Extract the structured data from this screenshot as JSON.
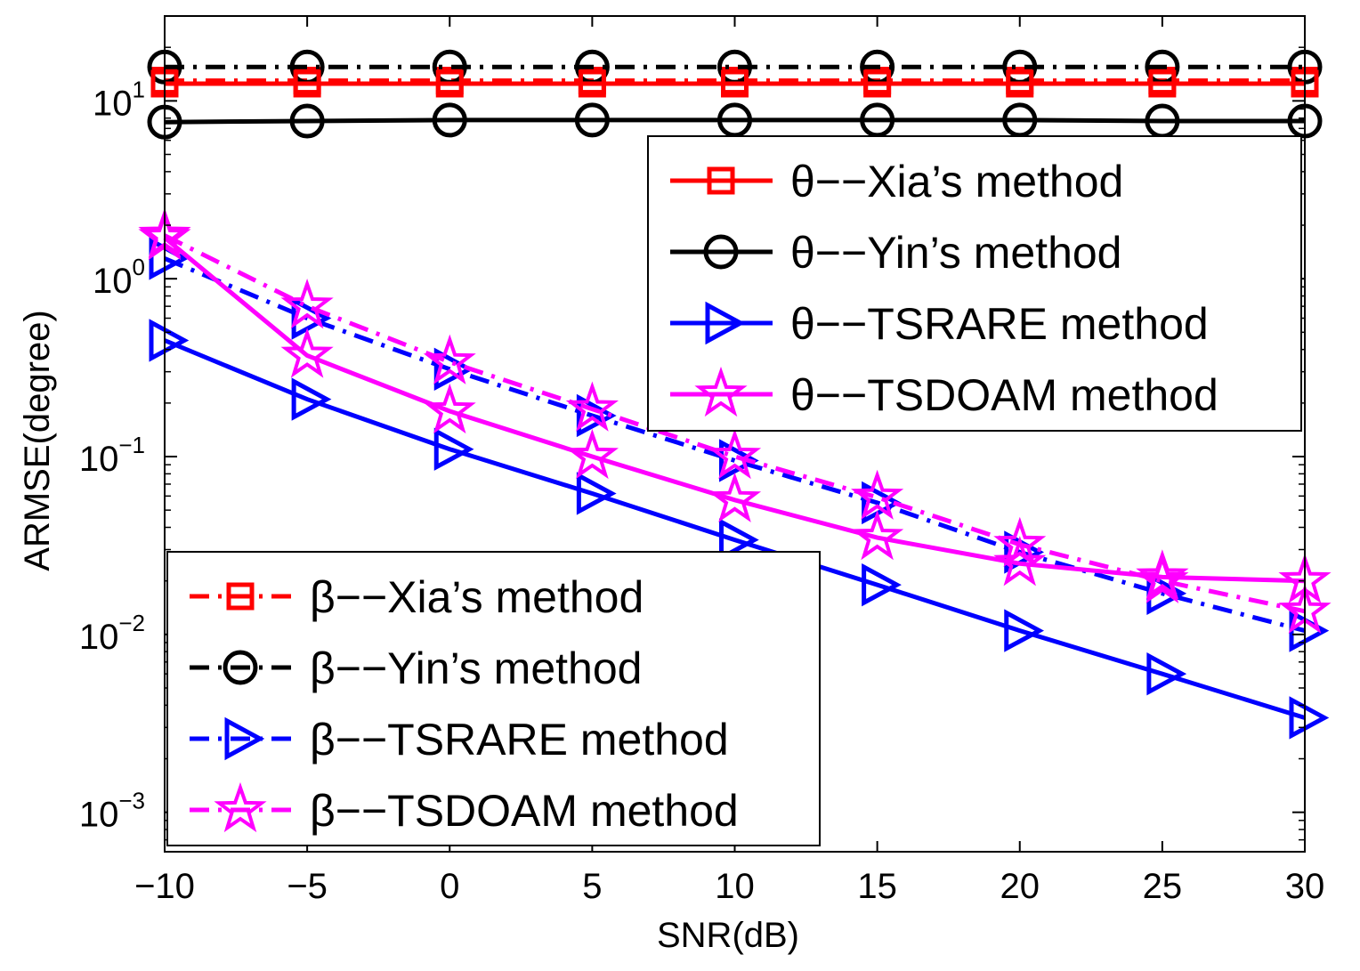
{
  "chart_data": {
    "type": "line",
    "title": "",
    "xlabel": "SNR(dB)",
    "ylabel": "ARMSE(degree)",
    "xlim": [
      -10,
      30
    ],
    "ylim": [
      0.0006,
      30
    ],
    "yscale": "log",
    "x": [
      -10,
      -5,
      0,
      5,
      10,
      15,
      20,
      25,
      30
    ],
    "x_tick_labels": [
      "−10",
      "−5",
      "0",
      "5",
      "10",
      "15",
      "20",
      "25",
      "30"
    ],
    "y_ticks": [
      {
        "value": 10,
        "base": "10",
        "exp": "1"
      },
      {
        "value": 1,
        "base": "10",
        "exp": "0"
      },
      {
        "value": 0.1,
        "base": "10",
        "exp": "−1"
      },
      {
        "value": 0.01,
        "base": "10",
        "exp": "−2"
      },
      {
        "value": 0.001,
        "base": "10",
        "exp": "−3"
      }
    ],
    "series": [
      {
        "name": "θ−−Xia’s method",
        "color": "#ff0000",
        "dash": "solid",
        "marker": "square",
        "values": [
          12.5,
          12.5,
          12.5,
          12.5,
          12.5,
          12.5,
          12.5,
          12.5,
          12.5
        ]
      },
      {
        "name": "θ−−Yin’s method",
        "color": "#000000",
        "dash": "solid",
        "marker": "circle",
        "values": [
          7.6,
          7.7,
          7.8,
          7.8,
          7.8,
          7.8,
          7.8,
          7.7,
          7.7
        ]
      },
      {
        "name": "θ−−TSRARE method",
        "color": "#0000ff",
        "dash": "solid",
        "marker": "triangle-right",
        "values": [
          0.45,
          0.21,
          0.11,
          0.062,
          0.034,
          0.019,
          0.0105,
          0.006,
          0.0034
        ]
      },
      {
        "name": "θ−−TSDOAM method",
        "color": "#ff00ff",
        "dash": "solid",
        "marker": "star",
        "values": [
          1.7,
          0.37,
          0.18,
          0.1,
          0.057,
          0.035,
          0.025,
          0.021,
          0.02
        ]
      },
      {
        "name": "β−−Xia’s method",
        "color": "#ff0000",
        "dash": "dashdot",
        "marker": "square",
        "values": [
          13.0,
          13.0,
          13.0,
          13.0,
          13.0,
          13.0,
          13.0,
          13.0,
          13.0
        ]
      },
      {
        "name": "β−−Yin’s method",
        "color": "#000000",
        "dash": "dashdot",
        "marker": "circle",
        "values": [
          15.5,
          15.5,
          15.5,
          15.5,
          15.5,
          15.5,
          15.5,
          15.5,
          15.5
        ]
      },
      {
        "name": "β−−TSRARE method",
        "color": "#0000ff",
        "dash": "dashdot",
        "marker": "triangle-right",
        "values": [
          1.3,
          0.6,
          0.31,
          0.17,
          0.095,
          0.055,
          0.029,
          0.017,
          0.0105
        ]
      },
      {
        "name": "β−−TSDOAM method",
        "color": "#ff00ff",
        "dash": "dashdot",
        "marker": "star",
        "values": [
          1.75,
          0.7,
          0.34,
          0.185,
          0.1,
          0.059,
          0.032,
          0.02,
          0.0135
        ]
      }
    ],
    "legends": [
      {
        "placement": "top-right",
        "series_indices": [
          0,
          1,
          2,
          3
        ]
      },
      {
        "placement": "bottom-left",
        "series_indices": [
          4,
          5,
          6,
          7
        ]
      }
    ]
  }
}
